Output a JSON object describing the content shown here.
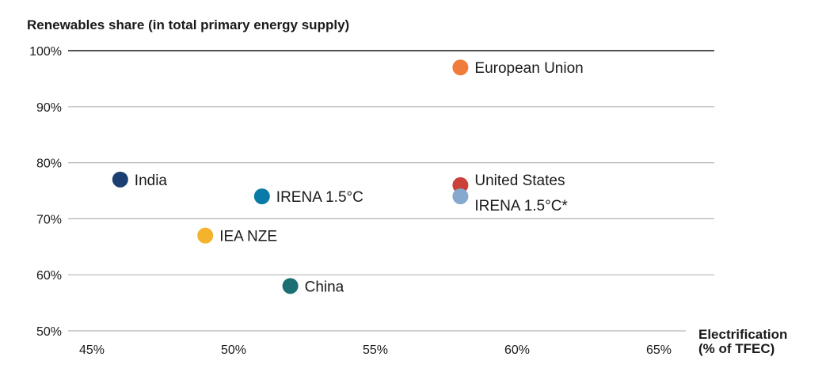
{
  "chart_data": {
    "type": "scatter",
    "ylabel": "Renewables share (in total primary energy supply)",
    "xlabel_lines": [
      "Electrification",
      "(% of TFEC)"
    ],
    "xlim": [
      45,
      65
    ],
    "ylim": [
      50,
      100
    ],
    "x_ticks": [
      45,
      50,
      55,
      60,
      65
    ],
    "x_tick_labels": [
      "45%",
      "50%",
      "55%",
      "60%",
      "65%"
    ],
    "y_ticks": [
      50,
      60,
      70,
      80,
      90,
      100
    ],
    "y_tick_labels": [
      "50%",
      "60%",
      "70%",
      "80%",
      "90%",
      "100%"
    ],
    "grid": "horizontal",
    "points": [
      {
        "label": "European Union",
        "x": 58,
        "y": 97,
        "color": "#f07c3c"
      },
      {
        "label": "India",
        "x": 46,
        "y": 77,
        "color": "#1c3f73"
      },
      {
        "label": "IRENA 1.5°C",
        "x": 51,
        "y": 74,
        "color": "#0a7aa6"
      },
      {
        "label": "United States",
        "x": 58,
        "y": 76,
        "color": "#c94139"
      },
      {
        "label": "IRENA 1.5°C*",
        "x": 58,
        "y": 74,
        "color": "#86a9cf"
      },
      {
        "label": "IEA NZE",
        "x": 49,
        "y": 67,
        "color": "#f5b22c"
      },
      {
        "label": "China",
        "x": 52,
        "y": 58,
        "color": "#1b6f73"
      }
    ]
  }
}
